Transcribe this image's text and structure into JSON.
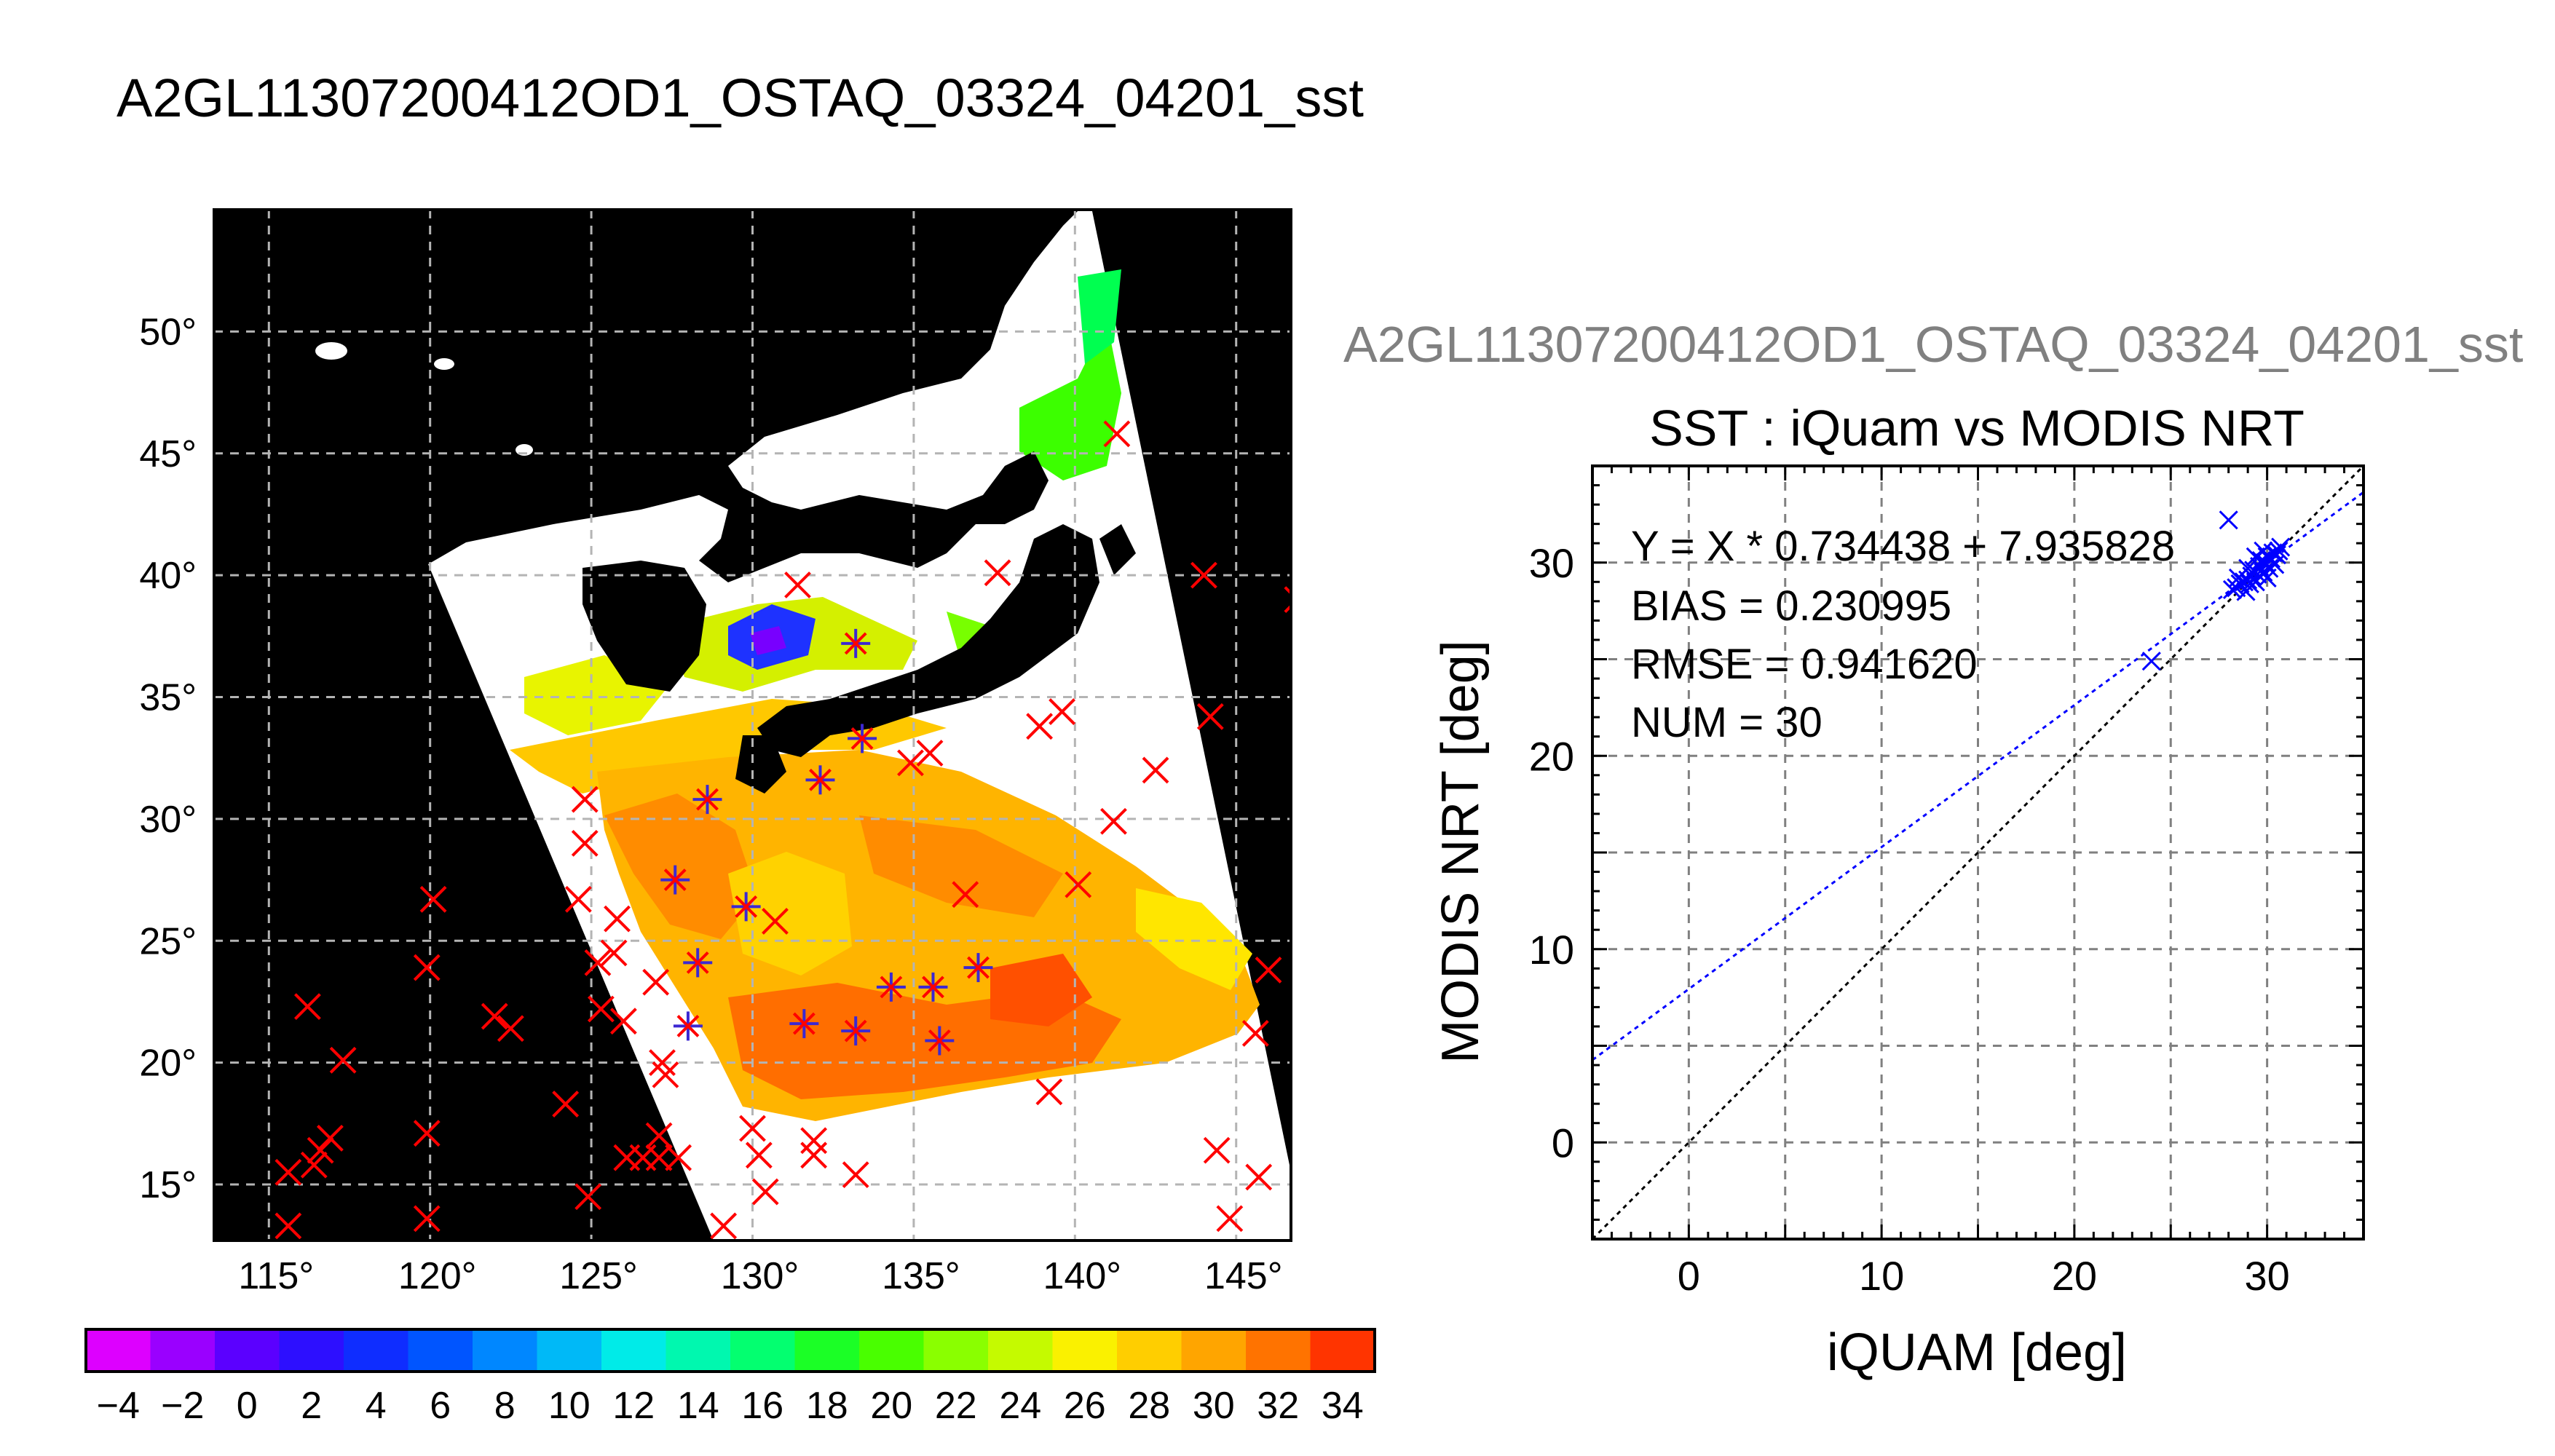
{
  "map_title": "A2GL11307200412OD1_OSTAQ_03324_04201_sst",
  "scatter_header": "A2GL11307200412OD1_OSTAQ_03324_04201_sst",
  "lat_labels": [
    "50°",
    "45°",
    "40°",
    "35°",
    "30°",
    "25°",
    "20°",
    "15°"
  ],
  "lon_labels": [
    "115°",
    "120°",
    "125°",
    "130°",
    "135°",
    "140°",
    "145°"
  ],
  "colorbar": {
    "tick_labels": [
      "−4",
      "−2",
      "0",
      "2",
      "4",
      "6",
      "8",
      "10",
      "12",
      "14",
      "16",
      "18",
      "20",
      "22",
      "24",
      "26",
      "28",
      "30",
      "32",
      "34"
    ],
    "range": [
      -5,
      35
    ]
  },
  "map": {
    "lon_range": [
      113.3,
      146.7
    ],
    "lat_range": [
      12.7,
      55.0
    ],
    "red_crosses": [
      [
        141.3,
        45.8
      ],
      [
        137.6,
        40.1
      ],
      [
        144.0,
        40.0
      ],
      [
        146.9,
        39.0
      ],
      [
        131.4,
        39.6
      ],
      [
        138.9,
        33.8
      ],
      [
        139.6,
        34.4
      ],
      [
        144.2,
        34.2
      ],
      [
        135.5,
        32.7
      ],
      [
        134.9,
        32.3
      ],
      [
        142.5,
        32.0
      ],
      [
        124.8,
        30.8
      ],
      [
        141.2,
        29.9
      ],
      [
        124.8,
        29.0
      ],
      [
        120.1,
        26.7
      ],
      [
        124.6,
        26.7
      ],
      [
        125.8,
        25.9
      ],
      [
        125.7,
        24.5
      ],
      [
        136.6,
        26.9
      ],
      [
        140.1,
        27.3
      ],
      [
        130.7,
        25.8
      ],
      [
        119.9,
        23.9
      ],
      [
        125.2,
        24.1
      ],
      [
        127.0,
        23.3
      ],
      [
        146.0,
        23.8
      ],
      [
        116.2,
        22.3
      ],
      [
        122.0,
        21.9
      ],
      [
        122.5,
        21.4
      ],
      [
        125.3,
        22.2
      ],
      [
        126.0,
        21.7
      ],
      [
        117.3,
        20.1
      ],
      [
        127.2,
        20.0
      ],
      [
        127.3,
        19.5
      ],
      [
        145.6,
        21.2
      ],
      [
        139.2,
        18.8
      ],
      [
        124.2,
        18.3
      ],
      [
        116.9,
        16.9
      ],
      [
        119.9,
        17.1
      ],
      [
        127.1,
        17.0
      ],
      [
        130.0,
        17.3
      ],
      [
        131.9,
        16.8
      ],
      [
        115.6,
        15.5
      ],
      [
        116.4,
        15.8
      ],
      [
        116.6,
        16.4
      ],
      [
        126.1,
        16.1
      ],
      [
        126.6,
        16.1
      ],
      [
        127.1,
        16.1
      ],
      [
        127.7,
        16.1
      ],
      [
        130.2,
        16.2
      ],
      [
        131.9,
        16.2
      ],
      [
        133.2,
        15.4
      ],
      [
        145.7,
        15.3
      ],
      [
        144.4,
        16.4
      ],
      [
        124.9,
        14.5
      ],
      [
        130.4,
        14.7
      ],
      [
        115.6,
        13.3
      ],
      [
        119.9,
        13.6
      ],
      [
        129.1,
        13.3
      ],
      [
        144.8,
        13.6
      ]
    ],
    "blue_stars": [
      [
        133.2,
        37.2
      ],
      [
        133.4,
        33.3
      ],
      [
        132.1,
        31.6
      ],
      [
        128.6,
        30.8
      ],
      [
        127.6,
        27.5
      ],
      [
        129.8,
        26.4
      ],
      [
        128.3,
        24.1
      ],
      [
        134.3,
        23.1
      ],
      [
        135.6,
        23.1
      ],
      [
        137.0,
        23.9
      ],
      [
        128.0,
        21.5
      ],
      [
        131.6,
        21.6
      ],
      [
        133.2,
        21.3
      ],
      [
        135.8,
        20.9
      ]
    ]
  },
  "chart_data": {
    "type": "scatter",
    "title": "SST : iQuam vs MODIS NRT",
    "xlabel": "iQUAM [deg]",
    "ylabel": "MODIS NRT [deg]",
    "xlim": [
      -5,
      35
    ],
    "ylim": [
      -5,
      35
    ],
    "x_ticks": [
      0,
      10,
      20,
      30
    ],
    "y_ticks": [
      0,
      10,
      20,
      30
    ],
    "grid": true,
    "annotations": [
      "Y = X * 0.734438 + 7.935828",
      "BIAS = 0.230995",
      "RMSE = 0.941620",
      "NUM = 30"
    ],
    "fit_line": {
      "slope": 0.734438,
      "intercept": 7.935828,
      "color": "#0000ff"
    },
    "identity_line": {
      "slope": 1,
      "intercept": 0,
      "color": "#000000"
    },
    "points_color": "#0000ff",
    "points": [
      [
        28.0,
        32.2
      ],
      [
        24.0,
        24.9
      ],
      [
        28.2,
        28.6
      ],
      [
        28.4,
        28.7
      ],
      [
        28.6,
        28.9
      ],
      [
        28.8,
        29.0
      ],
      [
        29.0,
        29.1
      ],
      [
        29.1,
        28.9
      ],
      [
        29.2,
        29.3
      ],
      [
        29.3,
        29.6
      ],
      [
        29.4,
        29.0
      ],
      [
        29.5,
        29.4
      ],
      [
        29.6,
        29.8
      ],
      [
        29.7,
        30.1
      ],
      [
        29.8,
        29.5
      ],
      [
        29.9,
        30.0
      ],
      [
        30.0,
        30.3
      ],
      [
        30.1,
        29.7
      ],
      [
        30.2,
        30.2
      ],
      [
        30.3,
        30.5
      ],
      [
        30.4,
        29.9
      ],
      [
        30.5,
        30.4
      ],
      [
        30.6,
        30.6
      ],
      [
        29.0,
        29.7
      ],
      [
        28.5,
        29.2
      ],
      [
        29.8,
        30.6
      ],
      [
        30.0,
        29.2
      ],
      [
        28.9,
        28.5
      ],
      [
        29.4,
        30.3
      ],
      [
        30.7,
        30.8
      ]
    ]
  }
}
